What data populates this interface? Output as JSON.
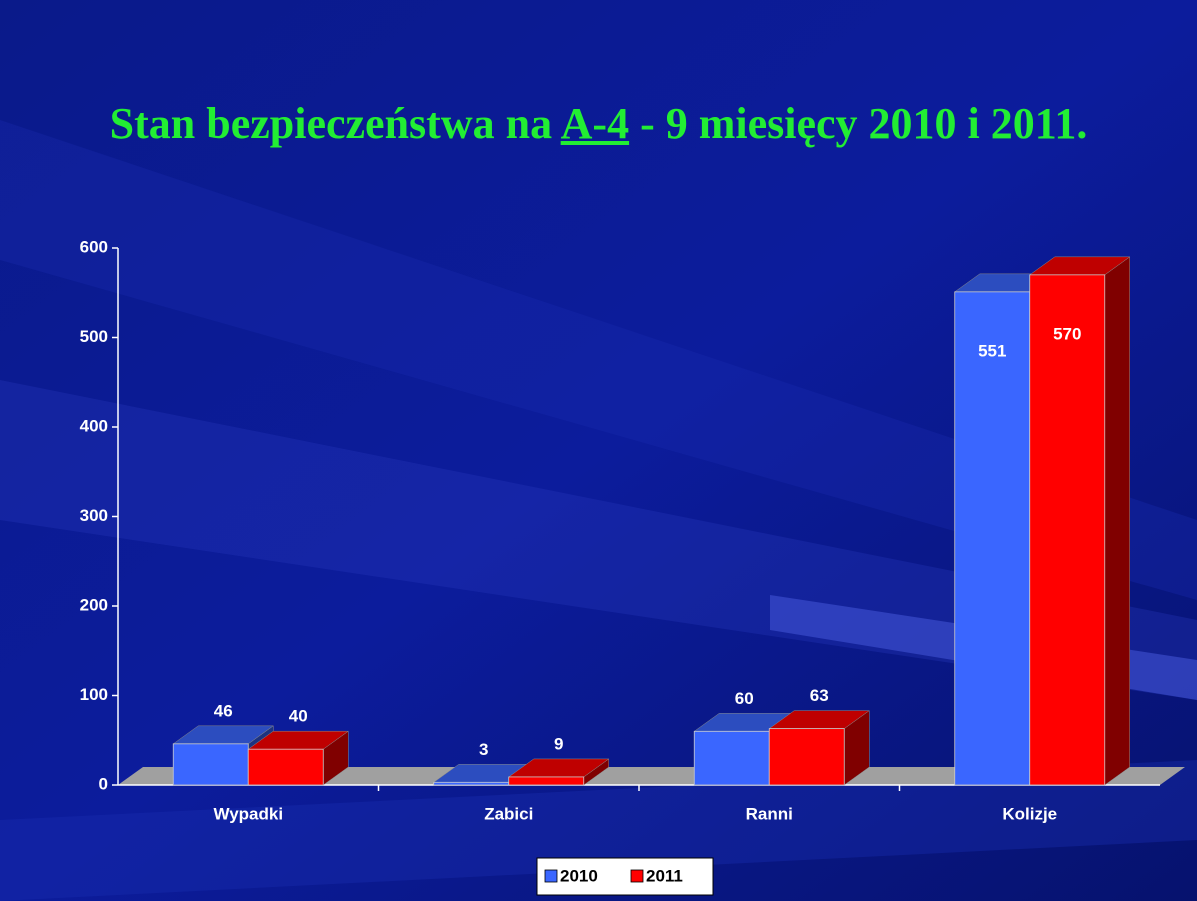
{
  "chart_data": {
    "type": "bar3d",
    "title": [
      "Stan bezpieczeństwa na",
      "A-4",
      "- 9 miesięcy 2010 i 2011."
    ],
    "categories": [
      "Wypadki",
      "Zabici",
      "Ranni",
      "Kolizje"
    ],
    "series": [
      {
        "name": "2010",
        "color": "#3a66ff",
        "values": [
          46,
          3,
          60,
          551
        ]
      },
      {
        "name": "2011",
        "color": "#ff0000",
        "values": [
          40,
          9,
          63,
          570
        ]
      }
    ],
    "ylim": [
      0,
      600
    ],
    "yticks": [
      0,
      100,
      200,
      300,
      400,
      500,
      600
    ],
    "grid": false
  }
}
